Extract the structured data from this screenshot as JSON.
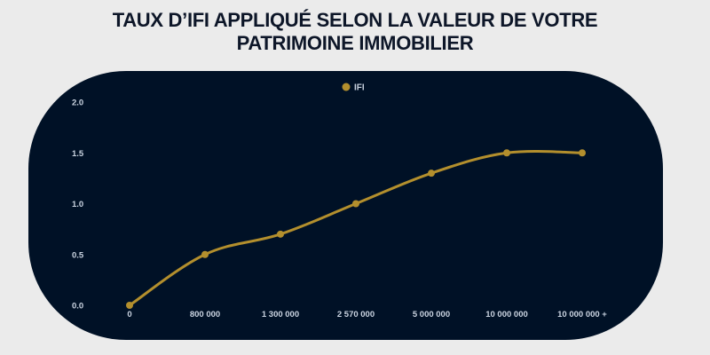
{
  "title": {
    "line1": "TAUX D’IFI APPLIQUÉ SELON LA VALEUR DE VOTRE",
    "line2": "PATRIMOINE IMMOBILIER"
  },
  "colors": {
    "background": "#ebebeb",
    "card": "#001126",
    "series": "#b38f2d",
    "tick_text": "#c9d3e0",
    "title_text": "#0d1628"
  },
  "legend": {
    "items": [
      {
        "label": "IFI",
        "icon": "circle-marker-icon",
        "color": "#b38f2d"
      }
    ]
  },
  "chart_data": {
    "type": "line",
    "title": "TAUX D’IFI APPLIQUÉ SELON LA VALEUR DE VOTRE PATRIMOINE IMMOBILIER",
    "xlabel": "",
    "ylabel": "",
    "categories": [
      "0",
      "800 000",
      "1 300 000",
      "2 570 000",
      "5 000 000",
      "10 000 000",
      "10 000 000 +"
    ],
    "series": [
      {
        "name": "IFI",
        "values": [
          0.0,
          0.5,
          0.7,
          1.0,
          1.3,
          1.5,
          1.5
        ],
        "color": "#b38f2d"
      }
    ],
    "ylim": [
      0,
      2.0
    ],
    "yticks": [
      "0.0",
      "0.5",
      "1.0",
      "1.5",
      "2.0"
    ],
    "grid": false,
    "legend_position": "top",
    "smooth": true
  }
}
